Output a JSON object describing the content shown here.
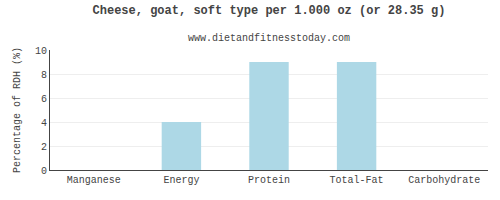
{
  "chart_data": {
    "type": "bar",
    "title": "Cheese, goat, soft type per 1.000 oz (or 28.35 g)",
    "subtitle": "www.dietandfitnesstoday.com",
    "categories": [
      "Manganese",
      "Energy",
      "Protein",
      "Total-Fat",
      "Carbohydrate"
    ],
    "values": [
      0.0,
      4.0,
      9.0,
      9.0,
      0.0
    ],
    "color": "#add8e6",
    "ylabel": "Percentage of RDH (%)",
    "ylim": [
      0,
      10
    ],
    "yticks": [
      0,
      2,
      4,
      6,
      8,
      10
    ],
    "grid": true
  }
}
